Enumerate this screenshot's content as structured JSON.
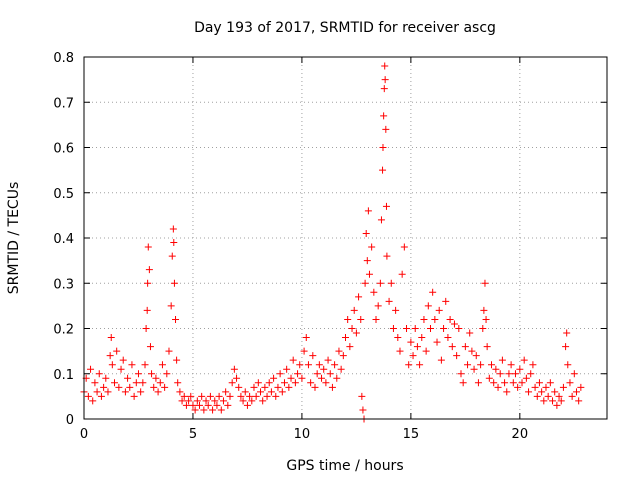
{
  "chart_data": {
    "type": "scatter",
    "title": "Day 193 of 2017, SRMTID for receiver ascg",
    "xlabel": "GPS time / hours",
    "ylabel": "SRMTID / TECUs",
    "xlim": [
      0,
      24
    ],
    "ylim": [
      0,
      0.8
    ],
    "xticks": [
      0,
      5,
      10,
      15,
      20
    ],
    "xtick_labels": [
      "0",
      "5",
      "10",
      "15",
      "20"
    ],
    "yticks": [
      0,
      0.1,
      0.2,
      0.3,
      0.4,
      0.5,
      0.6,
      0.7,
      0.8
    ],
    "ytick_labels": [
      "0",
      "0.1",
      "0.2",
      "0.3",
      "0.4",
      "0.5",
      "0.6",
      "0.7",
      "0.8"
    ],
    "grid": true,
    "marker": "plus",
    "series": [
      {
        "name": "SRMTID",
        "color": "#ff0000",
        "points": [
          [
            0.0,
            0.06
          ],
          [
            0.1,
            0.09
          ],
          [
            0.2,
            0.05
          ],
          [
            0.3,
            0.11
          ],
          [
            0.4,
            0.04
          ],
          [
            0.5,
            0.08
          ],
          [
            0.6,
            0.06
          ],
          [
            0.7,
            0.1
          ],
          [
            0.8,
            0.05
          ],
          [
            0.9,
            0.07
          ],
          [
            1.0,
            0.09
          ],
          [
            1.1,
            0.06
          ],
          [
            1.2,
            0.14
          ],
          [
            1.25,
            0.18
          ],
          [
            1.3,
            0.12
          ],
          [
            1.4,
            0.08
          ],
          [
            1.5,
            0.15
          ],
          [
            1.6,
            0.07
          ],
          [
            1.7,
            0.11
          ],
          [
            1.8,
            0.13
          ],
          [
            1.9,
            0.06
          ],
          [
            2.0,
            0.09
          ],
          [
            2.1,
            0.07
          ],
          [
            2.2,
            0.12
          ],
          [
            2.3,
            0.05
          ],
          [
            2.4,
            0.08
          ],
          [
            2.5,
            0.1
          ],
          [
            2.6,
            0.06
          ],
          [
            2.7,
            0.08
          ],
          [
            2.8,
            0.12
          ],
          [
            2.85,
            0.2
          ],
          [
            2.9,
            0.24
          ],
          [
            2.92,
            0.3
          ],
          [
            2.95,
            0.38
          ],
          [
            3.0,
            0.33
          ],
          [
            3.05,
            0.16
          ],
          [
            3.1,
            0.1
          ],
          [
            3.2,
            0.07
          ],
          [
            3.3,
            0.09
          ],
          [
            3.4,
            0.06
          ],
          [
            3.5,
            0.08
          ],
          [
            3.6,
            0.12
          ],
          [
            3.7,
            0.07
          ],
          [
            3.8,
            0.1
          ],
          [
            3.9,
            0.15
          ],
          [
            4.0,
            0.25
          ],
          [
            4.05,
            0.36
          ],
          [
            4.1,
            0.42
          ],
          [
            4.12,
            0.39
          ],
          [
            4.15,
            0.3
          ],
          [
            4.2,
            0.22
          ],
          [
            4.25,
            0.13
          ],
          [
            4.3,
            0.08
          ],
          [
            4.4,
            0.06
          ],
          [
            4.5,
            0.04
          ],
          [
            4.6,
            0.05
          ],
          [
            4.7,
            0.03
          ],
          [
            4.8,
            0.04
          ],
          [
            4.9,
            0.05
          ],
          [
            5.0,
            0.03
          ],
          [
            5.1,
            0.02
          ],
          [
            5.2,
            0.04
          ],
          [
            5.3,
            0.03
          ],
          [
            5.4,
            0.05
          ],
          [
            5.5,
            0.02
          ],
          [
            5.6,
            0.04
          ],
          [
            5.7,
            0.03
          ],
          [
            5.8,
            0.05
          ],
          [
            5.9,
            0.02
          ],
          [
            6.0,
            0.04
          ],
          [
            6.1,
            0.03
          ],
          [
            6.2,
            0.05
          ],
          [
            6.3,
            0.02
          ],
          [
            6.4,
            0.04
          ],
          [
            6.5,
            0.06
          ],
          [
            6.6,
            0.03
          ],
          [
            6.7,
            0.05
          ],
          [
            6.8,
            0.08
          ],
          [
            6.9,
            0.11
          ],
          [
            7.0,
            0.09
          ],
          [
            7.1,
            0.07
          ],
          [
            7.2,
            0.05
          ],
          [
            7.3,
            0.04
          ],
          [
            7.4,
            0.06
          ],
          [
            7.5,
            0.03
          ],
          [
            7.6,
            0.05
          ],
          [
            7.7,
            0.04
          ],
          [
            7.8,
            0.07
          ],
          [
            7.9,
            0.05
          ],
          [
            8.0,
            0.08
          ],
          [
            8.1,
            0.06
          ],
          [
            8.2,
            0.04
          ],
          [
            8.3,
            0.07
          ],
          [
            8.4,
            0.05
          ],
          [
            8.5,
            0.08
          ],
          [
            8.6,
            0.06
          ],
          [
            8.7,
            0.09
          ],
          [
            8.8,
            0.05
          ],
          [
            8.9,
            0.07
          ],
          [
            9.0,
            0.1
          ],
          [
            9.1,
            0.06
          ],
          [
            9.2,
            0.08
          ],
          [
            9.3,
            0.11
          ],
          [
            9.4,
            0.07
          ],
          [
            9.5,
            0.09
          ],
          [
            9.6,
            0.13
          ],
          [
            9.7,
            0.08
          ],
          [
            9.8,
            0.1
          ],
          [
            9.9,
            0.12
          ],
          [
            10.0,
            0.09
          ],
          [
            10.1,
            0.15
          ],
          [
            10.2,
            0.18
          ],
          [
            10.3,
            0.12
          ],
          [
            10.4,
            0.08
          ],
          [
            10.5,
            0.14
          ],
          [
            10.6,
            0.07
          ],
          [
            10.7,
            0.1
          ],
          [
            10.8,
            0.12
          ],
          [
            10.9,
            0.09
          ],
          [
            11.0,
            0.11
          ],
          [
            11.1,
            0.08
          ],
          [
            11.2,
            0.13
          ],
          [
            11.3,
            0.1
          ],
          [
            11.4,
            0.07
          ],
          [
            11.5,
            0.12
          ],
          [
            11.6,
            0.09
          ],
          [
            11.7,
            0.15
          ],
          [
            11.8,
            0.11
          ],
          [
            11.9,
            0.14
          ],
          [
            12.0,
            0.18
          ],
          [
            12.1,
            0.22
          ],
          [
            12.2,
            0.16
          ],
          [
            12.3,
            0.2
          ],
          [
            12.4,
            0.24
          ],
          [
            12.5,
            0.19
          ],
          [
            12.6,
            0.27
          ],
          [
            12.7,
            0.22
          ],
          [
            12.75,
            0.05
          ],
          [
            12.8,
            0.02
          ],
          [
            12.85,
            0.0
          ],
          [
            12.9,
            0.3
          ],
          [
            12.95,
            0.41
          ],
          [
            13.0,
            0.35
          ],
          [
            13.05,
            0.46
          ],
          [
            13.1,
            0.32
          ],
          [
            13.2,
            0.38
          ],
          [
            13.3,
            0.28
          ],
          [
            13.4,
            0.22
          ],
          [
            13.5,
            0.25
          ],
          [
            13.6,
            0.3
          ],
          [
            13.65,
            0.44
          ],
          [
            13.7,
            0.55
          ],
          [
            13.72,
            0.6
          ],
          [
            13.75,
            0.67
          ],
          [
            13.78,
            0.73
          ],
          [
            13.8,
            0.78
          ],
          [
            13.82,
            0.75
          ],
          [
            13.85,
            0.64
          ],
          [
            13.88,
            0.47
          ],
          [
            13.9,
            0.36
          ],
          [
            14.0,
            0.26
          ],
          [
            14.1,
            0.3
          ],
          [
            14.2,
            0.2
          ],
          [
            14.3,
            0.24
          ],
          [
            14.4,
            0.18
          ],
          [
            14.5,
            0.15
          ],
          [
            14.6,
            0.32
          ],
          [
            14.7,
            0.38
          ],
          [
            14.8,
            0.2
          ],
          [
            14.9,
            0.12
          ],
          [
            15.0,
            0.17
          ],
          [
            15.1,
            0.14
          ],
          [
            15.2,
            0.2
          ],
          [
            15.3,
            0.16
          ],
          [
            15.4,
            0.12
          ],
          [
            15.5,
            0.18
          ],
          [
            15.6,
            0.22
          ],
          [
            15.7,
            0.15
          ],
          [
            15.8,
            0.25
          ],
          [
            15.9,
            0.2
          ],
          [
            16.0,
            0.28
          ],
          [
            16.1,
            0.22
          ],
          [
            16.2,
            0.17
          ],
          [
            16.3,
            0.24
          ],
          [
            16.4,
            0.13
          ],
          [
            16.5,
            0.2
          ],
          [
            16.6,
            0.26
          ],
          [
            16.7,
            0.18
          ],
          [
            16.8,
            0.22
          ],
          [
            16.9,
            0.16
          ],
          [
            17.0,
            0.21
          ],
          [
            17.1,
            0.14
          ],
          [
            17.2,
            0.2
          ],
          [
            17.3,
            0.1
          ],
          [
            17.4,
            0.08
          ],
          [
            17.5,
            0.16
          ],
          [
            17.6,
            0.12
          ],
          [
            17.7,
            0.19
          ],
          [
            17.8,
            0.15
          ],
          [
            17.9,
            0.11
          ],
          [
            18.0,
            0.14
          ],
          [
            18.1,
            0.08
          ],
          [
            18.2,
            0.12
          ],
          [
            18.3,
            0.2
          ],
          [
            18.35,
            0.24
          ],
          [
            18.4,
            0.3
          ],
          [
            18.45,
            0.22
          ],
          [
            18.5,
            0.16
          ],
          [
            18.6,
            0.09
          ],
          [
            18.7,
            0.12
          ],
          [
            18.8,
            0.08
          ],
          [
            18.9,
            0.11
          ],
          [
            19.0,
            0.07
          ],
          [
            19.1,
            0.1
          ],
          [
            19.2,
            0.13
          ],
          [
            19.3,
            0.08
          ],
          [
            19.4,
            0.06
          ],
          [
            19.5,
            0.1
          ],
          [
            19.6,
            0.12
          ],
          [
            19.7,
            0.08
          ],
          [
            19.8,
            0.1
          ],
          [
            19.9,
            0.07
          ],
          [
            20.0,
            0.11
          ],
          [
            20.1,
            0.08
          ],
          [
            20.2,
            0.13
          ],
          [
            20.3,
            0.09
          ],
          [
            20.4,
            0.06
          ],
          [
            20.5,
            0.1
          ],
          [
            20.6,
            0.12
          ],
          [
            20.7,
            0.07
          ],
          [
            20.8,
            0.05
          ],
          [
            20.9,
            0.08
          ],
          [
            21.0,
            0.06
          ],
          [
            21.1,
            0.04
          ],
          [
            21.2,
            0.07
          ],
          [
            21.3,
            0.05
          ],
          [
            21.4,
            0.08
          ],
          [
            21.5,
            0.04
          ],
          [
            21.6,
            0.06
          ],
          [
            21.7,
            0.03
          ],
          [
            21.8,
            0.05
          ],
          [
            21.9,
            0.04
          ],
          [
            22.0,
            0.07
          ],
          [
            22.1,
            0.16
          ],
          [
            22.15,
            0.19
          ],
          [
            22.2,
            0.12
          ],
          [
            22.3,
            0.08
          ],
          [
            22.4,
            0.05
          ],
          [
            22.5,
            0.1
          ],
          [
            22.6,
            0.06
          ],
          [
            22.7,
            0.04
          ],
          [
            22.8,
            0.07
          ]
        ]
      }
    ]
  }
}
